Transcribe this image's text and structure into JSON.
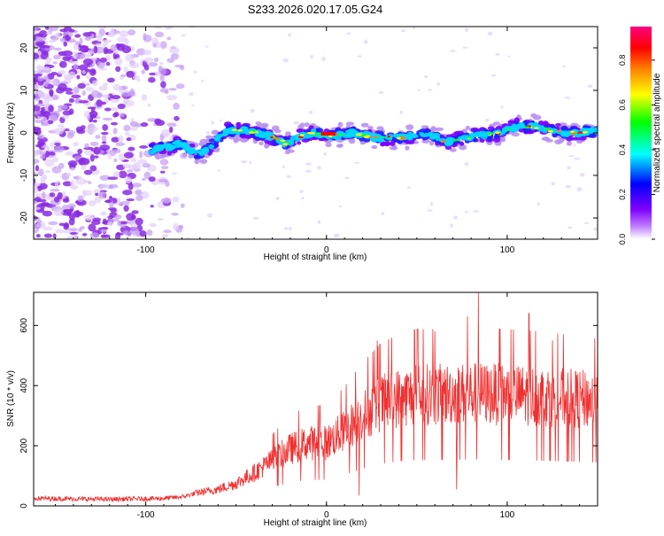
{
  "page_title": "S233.2026.020.17.05.G24",
  "chart_data": [
    {
      "type": "heatmap",
      "title": "S233.2026.020.17.05.G24",
      "xlabel": "Height of straight line (km)",
      "ylabel": "Frequency (Hz)",
      "xlim": [
        -162,
        150
      ],
      "ylim": [
        -25,
        25
      ],
      "x_ticks": [
        -100,
        0,
        100
      ],
      "y_ticks": [
        -20,
        -10,
        0,
        10,
        20
      ],
      "colorbar": {
        "label": "Normalized spectral amplitude",
        "range": [
          0,
          0.95
        ],
        "ticks": [
          0.0,
          0.2,
          0.4,
          0.6,
          0.8
        ],
        "colors": [
          "#ffffff",
          "#8000ff",
          "#0000ff",
          "#00ffff",
          "#00ff00",
          "#ffff00",
          "#ff8000",
          "#ff0000",
          "#ff0080"
        ]
      },
      "ridge": {
        "x": [
          -97,
          -90,
          -80,
          -72,
          -65,
          -55,
          -45,
          -38,
          -30,
          -22,
          -15,
          -8,
          0,
          8,
          15,
          25,
          35,
          45,
          55,
          65,
          75,
          85,
          95,
          105,
          115,
          125,
          135,
          150
        ],
        "y": [
          -4,
          -3.5,
          -2.5,
          -5,
          -3.5,
          0.5,
          0.5,
          0,
          -1,
          -2.5,
          -1,
          0,
          -0.5,
          -0.5,
          0,
          -1,
          -1.2,
          -1,
          0,
          -2,
          -1.5,
          -0.5,
          -0.2,
          1.5,
          1.5,
          0.5,
          0,
          0.5
        ],
        "peak_amplitude": 0.95
      },
      "noise_region_xlim": [
        -162,
        -85
      ]
    },
    {
      "type": "line",
      "xlabel": "Height of straight line (km)",
      "ylabel": "SNR (10 * v/v)",
      "xlim": [
        -162,
        150
      ],
      "ylim": [
        0,
        710
      ],
      "x_ticks": [
        -100,
        0,
        100
      ],
      "y_ticks": [
        0,
        200,
        400,
        600
      ],
      "series": [
        {
          "name": "SNR",
          "color": "#f03030",
          "envelope_x": [
            -162,
            -120,
            -90,
            -80,
            -70,
            -60,
            -50,
            -40,
            -30,
            -20,
            -10,
            0,
            10,
            20,
            30,
            40,
            50,
            60,
            80,
            100,
            120,
            140,
            150
          ],
          "envelope_y": [
            25,
            22,
            25,
            30,
            45,
            55,
            75,
            110,
            150,
            190,
            210,
            210,
            250,
            300,
            340,
            360,
            370,
            370,
            375,
            370,
            365,
            355,
            350
          ],
          "spikes": [
            {
              "x": 84,
              "y": 710
            },
            {
              "x": 78,
              "y": 630
            },
            {
              "x": 112,
              "y": 640
            },
            {
              "x": 28,
              "y": 550
            },
            {
              "x": 60,
              "y": 580
            },
            {
              "x": 125,
              "y": 550
            },
            {
              "x": 18,
              "y": 35
            },
            {
              "x": 72,
              "y": 55
            }
          ]
        }
      ]
    }
  ]
}
